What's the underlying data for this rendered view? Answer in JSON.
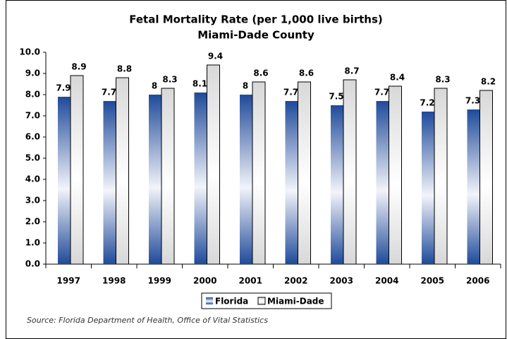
{
  "chart_data": {
    "type": "bar",
    "title": "Fetal Mortality Rate (per 1,000 live births)",
    "subtitle": "Miami-Dade County",
    "categories": [
      "1997",
      "1998",
      "1999",
      "2000",
      "2001",
      "2002",
      "2003",
      "2004",
      "2005",
      "2006"
    ],
    "series": [
      {
        "name": "Florida",
        "color": "#1f4a9a",
        "values": [
          7.9,
          7.7,
          8,
          8.1,
          8,
          7.7,
          7.5,
          7.7,
          7.2,
          7.3
        ]
      },
      {
        "name": "Miami-Dade",
        "color": "#ffffff",
        "values": [
          8.9,
          8.8,
          8.3,
          9.4,
          8.6,
          8.6,
          8.7,
          8.4,
          8.3,
          8.2
        ]
      }
    ],
    "ylim": [
      0,
      10
    ],
    "yticks": [
      {
        "value": 0,
        "label": "0.0"
      },
      {
        "value": 1,
        "label": "1.0"
      },
      {
        "value": 2,
        "label": "2.0"
      },
      {
        "value": 3,
        "label": "3.0"
      },
      {
        "value": 4,
        "label": "4.0"
      },
      {
        "value": 5,
        "label": "5.0"
      },
      {
        "value": 6,
        "label": "6.0"
      },
      {
        "value": 7,
        "label": "7.0"
      },
      {
        "value": 8,
        "label": "8.0"
      },
      {
        "value": 9,
        "label": "9.0"
      },
      {
        "value": 10,
        "label": "10.0"
      }
    ],
    "grid": false,
    "legend": "bottom",
    "source": "Source: Florida Department of Health, Office of Vital Statistics"
  }
}
